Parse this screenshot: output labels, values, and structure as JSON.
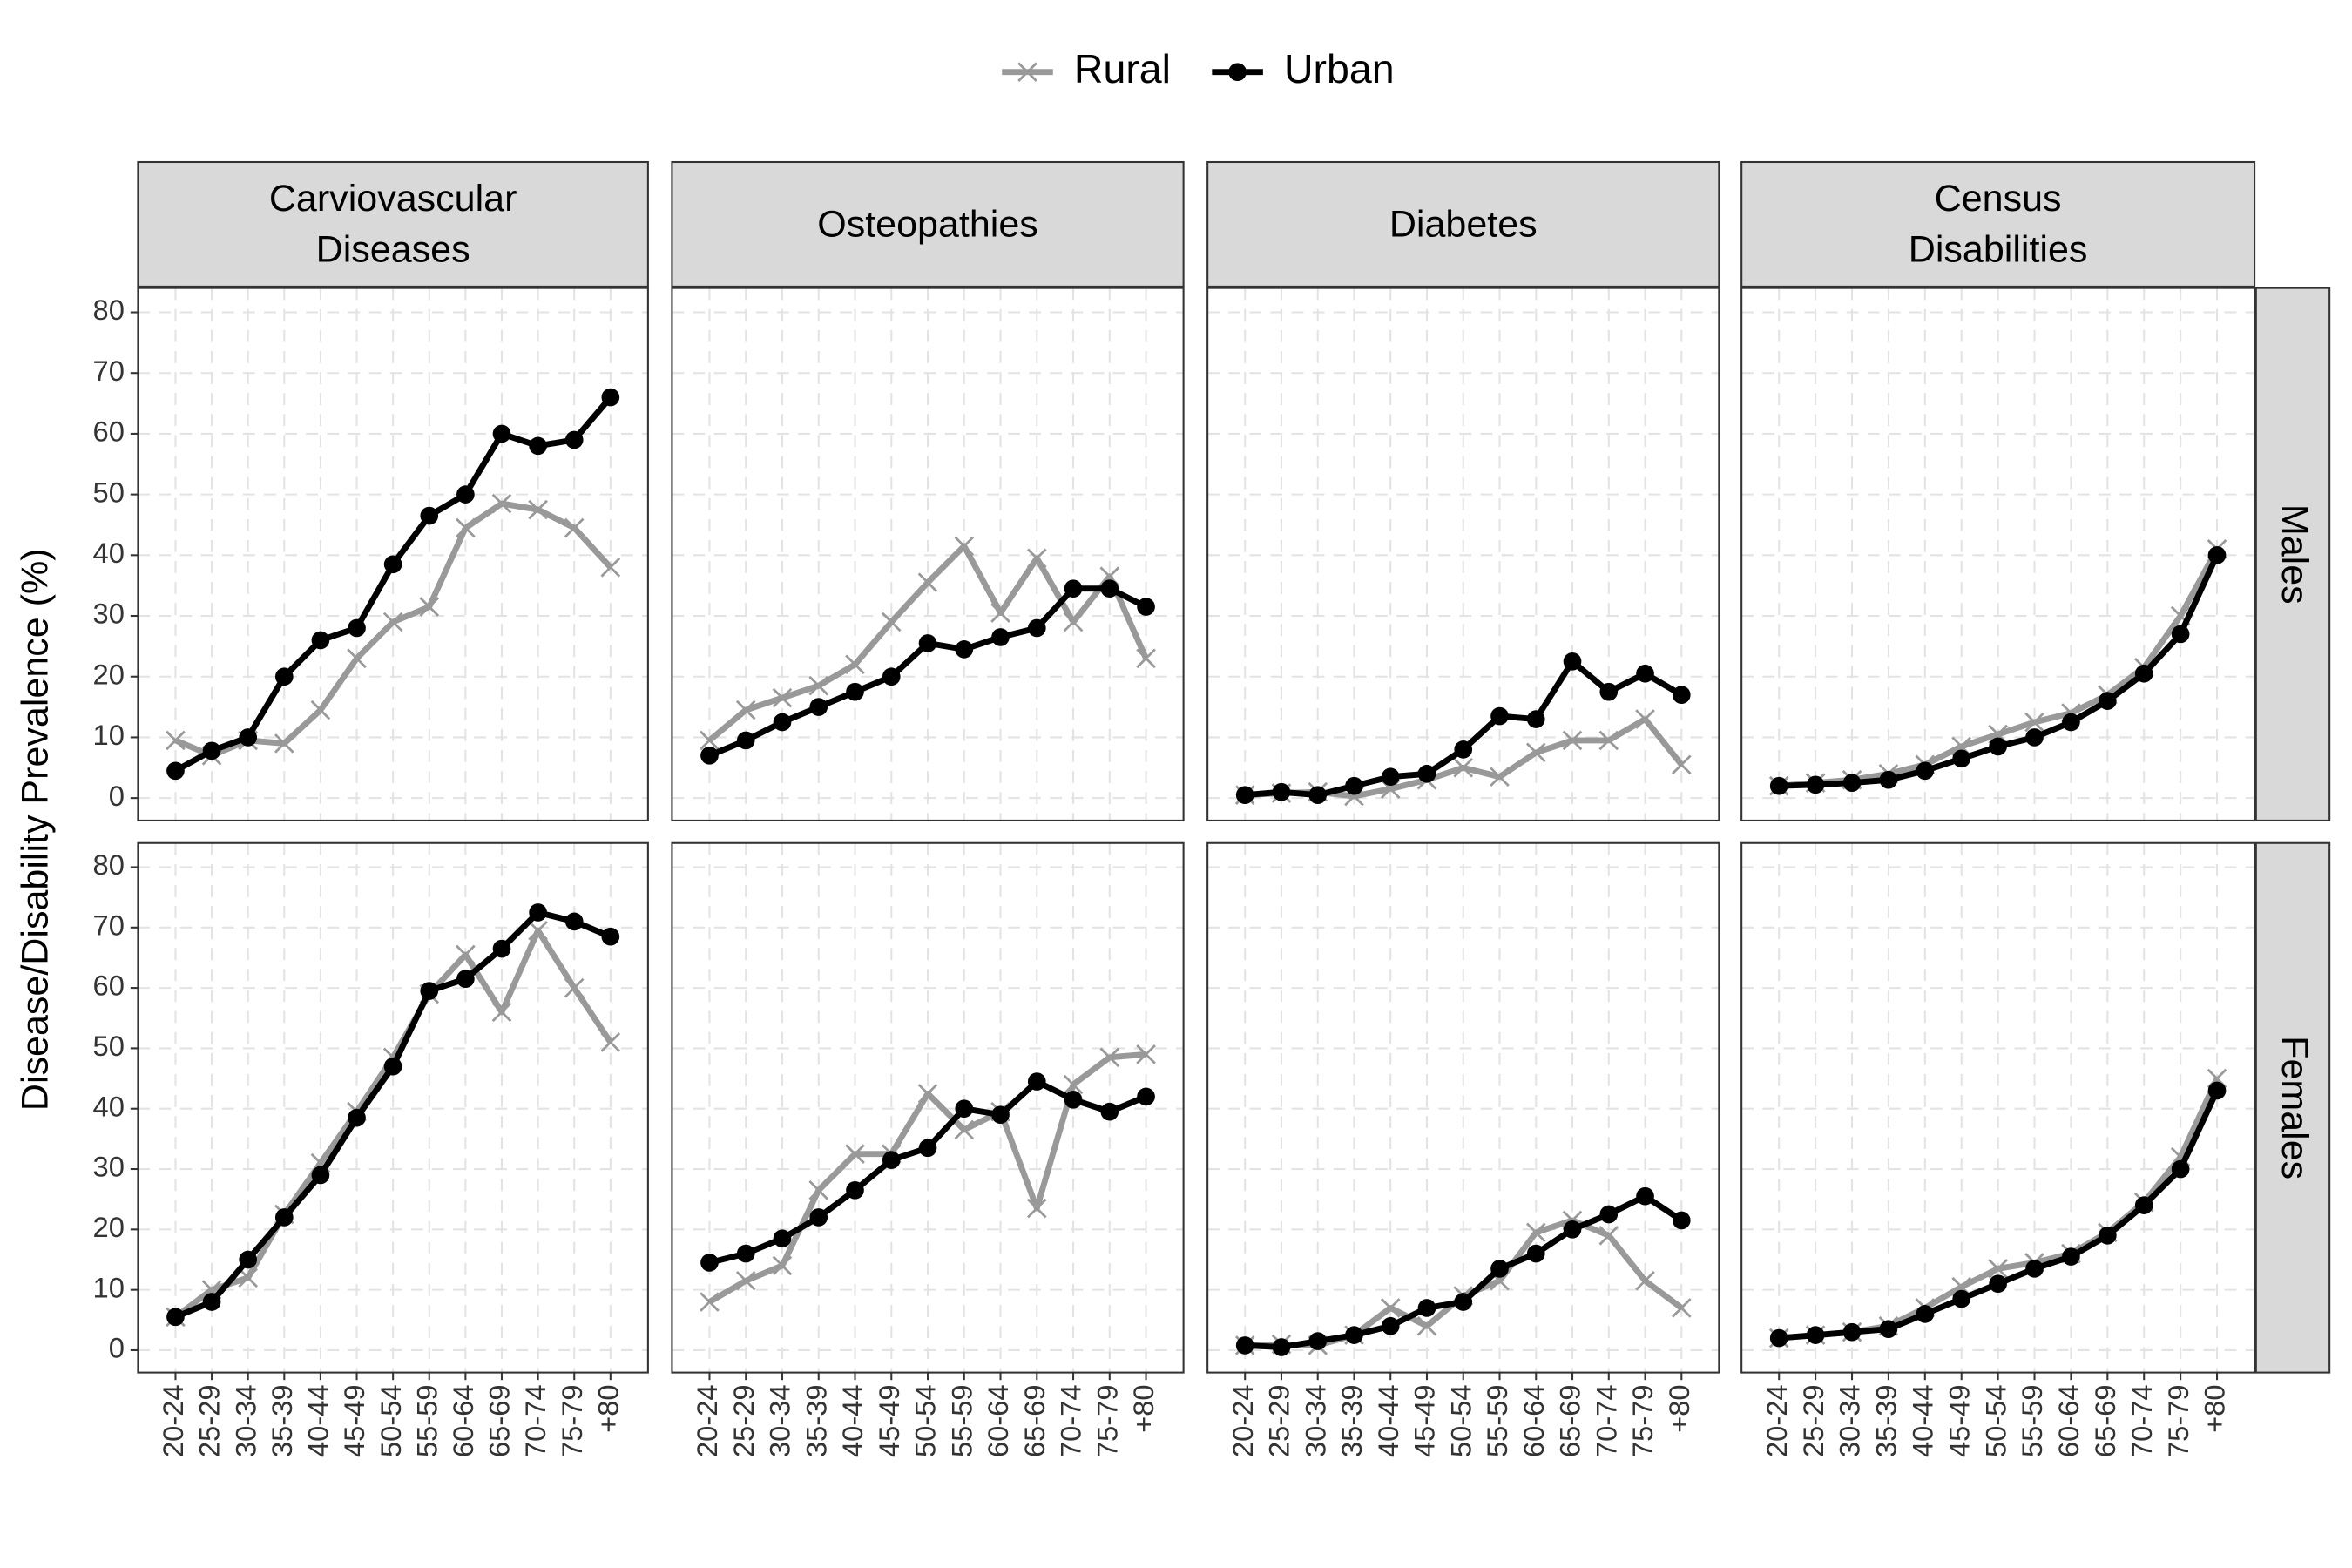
{
  "chart_data": {
    "type": "line",
    "y_label": "Disease/Disability Prevalence (%)",
    "categories": [
      "20-24",
      "25-29",
      "30-34",
      "35-39",
      "40-44",
      "45-49",
      "50-54",
      "55-59",
      "60-64",
      "65-69",
      "70-74",
      "75-79",
      "+80"
    ],
    "ylim": [
      -3.7,
      84
    ],
    "yticks": [
      0,
      10,
      20,
      30,
      40,
      50,
      60,
      70,
      80
    ],
    "grid": true,
    "legend": "top",
    "series": [
      {
        "name": "Rural",
        "color": "#999999",
        "marker": "x"
      },
      {
        "name": "Urban",
        "color": "#000000",
        "marker": "circle"
      }
    ],
    "columns": [
      "Carviovascular\nDiseases",
      "Osteopathies",
      "Diabetes",
      "Census\nDisabilities"
    ],
    "rows": [
      "Males",
      "Females"
    ],
    "panels": [
      {
        "series": [
          {
            "values": [
              9.5,
              7,
              9.5,
              9,
              14.5,
              23,
              29,
              31.5,
              44.5,
              48.5,
              47.5,
              44.5,
              38
            ]
          },
          {
            "values": [
              4.5,
              7.8,
              10,
              20,
              26,
              28,
              38.5,
              46.5,
              50,
              60,
              58,
              59,
              66
            ]
          }
        ]
      },
      {
        "series": [
          {
            "values": [
              9.5,
              14.5,
              16.5,
              18.5,
              22,
              29,
              35.5,
              41.5,
              30.5,
              39.5,
              29,
              36.5,
              23
            ]
          },
          {
            "values": [
              7,
              9.5,
              12.5,
              15,
              17.5,
              20,
              25.5,
              24.5,
              26.5,
              28,
              34.5,
              34.5,
              31.5
            ]
          }
        ]
      },
      {
        "series": [
          {
            "values": [
              0.5,
              0.8,
              1,
              0.3,
              1.5,
              3,
              5,
              3.5,
              7.5,
              9.5,
              9.5,
              13,
              5.5
            ]
          },
          {
            "values": [
              0.5,
              1,
              0.5,
              2,
              3.5,
              4,
              8,
              13.5,
              13,
              22.5,
              17.5,
              20.5,
              17
            ]
          }
        ]
      },
      {
        "series": [
          {
            "values": [
              2,
              2.5,
              3,
              4,
              5.5,
              8.5,
              10.5,
              12.5,
              14,
              17,
              21.5,
              30,
              41
            ]
          },
          {
            "values": [
              2,
              2.2,
              2.5,
              3,
              4.5,
              6.5,
              8.5,
              10,
              12.5,
              16,
              20.5,
              27,
              40
            ]
          }
        ]
      },
      {
        "series": [
          {
            "values": [
              5.5,
              10,
              12,
              22.5,
              31,
              39.5,
              48.5,
              59,
              65.5,
              56,
              69.5,
              60,
              51
            ]
          },
          {
            "values": [
              5.5,
              8,
              15,
              22,
              29,
              38.5,
              47,
              59.5,
              61.5,
              66.5,
              72.5,
              71,
              68.5
            ]
          }
        ]
      },
      {
        "series": [
          {
            "values": [
              8,
              11.5,
              14,
              26.5,
              32.5,
              32.5,
              42.5,
              36.5,
              39.5,
              23.5,
              44,
              48.5,
              49
            ]
          },
          {
            "values": [
              14.5,
              16,
              18.5,
              22,
              26.5,
              31.5,
              33.5,
              40,
              39,
              44.5,
              41.5,
              39.5,
              42
            ]
          }
        ]
      },
      {
        "series": [
          {
            "values": [
              0.8,
              1,
              0.8,
              2.5,
              7,
              4,
              9,
              11.5,
              19.5,
              21.5,
              19,
              11.5,
              7
            ]
          },
          {
            "values": [
              0.8,
              0.5,
              1.5,
              2.5,
              4,
              7,
              8,
              13.5,
              16,
              20,
              22.5,
              25.5,
              21.5
            ]
          }
        ]
      },
      {
        "series": [
          {
            "values": [
              2,
              2.5,
              3,
              4,
              7,
              10.5,
              13.5,
              14.5,
              16,
              19.5,
              24.5,
              32,
              45
            ]
          },
          {
            "values": [
              2,
              2.5,
              3,
              3.5,
              6,
              8.5,
              11,
              13.5,
              15.5,
              19,
              24,
              30,
              43
            ]
          }
        ]
      }
    ]
  }
}
